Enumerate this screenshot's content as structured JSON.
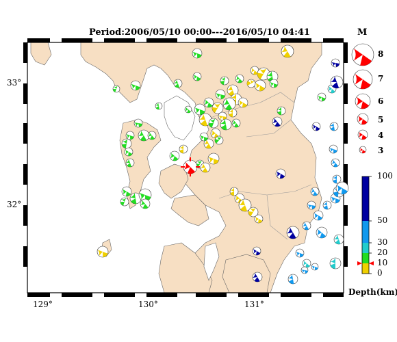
{
  "title": "Period:2006/05/10 00:00---2016/05/10 04:41",
  "map": {
    "lon_ticks": [
      "129°",
      "130°",
      "131°"
    ],
    "lat_ticks": [
      "33°",
      "32°"
    ]
  },
  "magnitude_legend": {
    "heading": "M",
    "labels": [
      "8",
      "7",
      "6",
      "5",
      "4",
      "3"
    ]
  },
  "depth_legend": {
    "title": "Depth(km)",
    "tick_labels": [
      "100",
      "50",
      "30",
      "20",
      "10",
      "0"
    ],
    "colors": {
      "shallow": "#f0d000",
      "d10_20": "#22dd22",
      "d20_30": "#22cccc",
      "d30_50": "#1199ee",
      "deep": "#0000a0"
    },
    "marker_depth_km": 10
  },
  "colors": {
    "land": "#f7dfc3",
    "sea": "#ffffff",
    "highlight_event": "#ff0000"
  }
}
